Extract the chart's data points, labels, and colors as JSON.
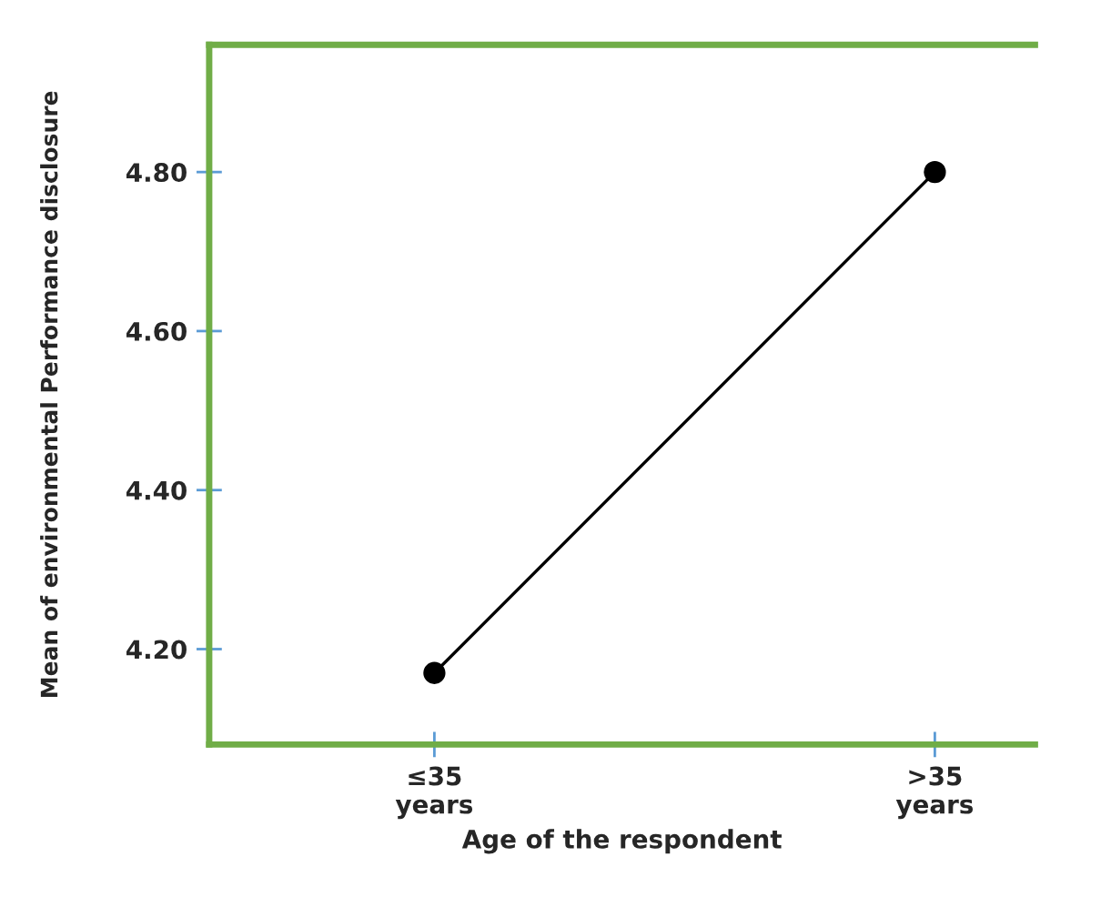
{
  "chart_data": {
    "type": "line",
    "xlabel": "Age of the respondent",
    "ylabel": "Mean of environmental Performance disclosure",
    "categories": [
      "≤35\nyears",
      ">35\nyears"
    ],
    "series": [
      {
        "color": "#000000",
        "values": [
          4.17,
          4.8
        ]
      }
    ],
    "marker": "circle",
    "line_style": "solid",
    "ylim": [
      4.08,
      4.96
    ],
    "yticks": [
      {
        "value": 4.2,
        "label": "4.20"
      },
      {
        "value": 4.4,
        "label": "4.40"
      },
      {
        "value": 4.6,
        "label": "4.60"
      },
      {
        "value": 4.8,
        "label": "4.80"
      }
    ],
    "grid": false
  }
}
